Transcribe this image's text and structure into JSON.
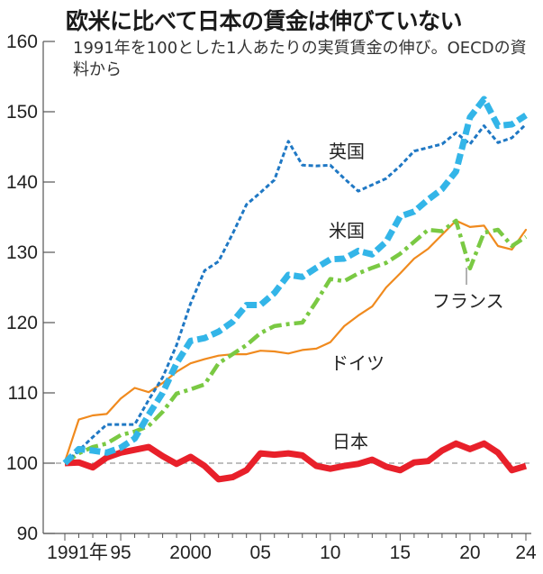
{
  "chart_data": {
    "type": "line",
    "title": "欧米に比べて日本の賃金は伸びていない",
    "subtitle": "1991年を100とした1人あたりの実質賃金の伸び。OECDの資料から",
    "xlabel": "",
    "ylabel": "",
    "xlim": [
      1991,
      2024
    ],
    "ylim": [
      90,
      160
    ],
    "yticks": [
      90,
      100,
      110,
      120,
      130,
      140,
      150,
      160
    ],
    "xtick_labels": [
      {
        "year": 1991,
        "label": "1991年"
      },
      {
        "year": 1995,
        "label": "95"
      },
      {
        "year": 2000,
        "label": "2000"
      },
      {
        "year": 2005,
        "label": "05"
      },
      {
        "year": 2010,
        "label": "10"
      },
      {
        "year": 2015,
        "label": "15"
      },
      {
        "year": 2020,
        "label": "20"
      },
      {
        "year": 2024,
        "label": "24"
      }
    ],
    "reference_line": 100,
    "x": [
      1991,
      1992,
      1993,
      1994,
      1995,
      1996,
      1997,
      1998,
      1999,
      2000,
      2001,
      2002,
      2003,
      2004,
      2005,
      2006,
      2007,
      2008,
      2009,
      2010,
      2011,
      2012,
      2013,
      2014,
      2015,
      2016,
      2017,
      2018,
      2019,
      2020,
      2021,
      2022,
      2023,
      2024
    ],
    "series": [
      {
        "name": "英国",
        "color": "#1f78c4",
        "style": "dotted",
        "values": [
          100,
          101.8,
          103.7,
          105.5,
          105.5,
          105.5,
          109,
          112.2,
          116.8,
          122.7,
          127.4,
          128.7,
          132.6,
          136.8,
          138.5,
          140.3,
          145.8,
          142.4,
          142.3,
          142.4,
          140.5,
          138.7,
          139.6,
          140.5,
          142.3,
          144.4,
          144.9,
          145.4,
          147.0,
          145.4,
          148.0,
          145.6,
          146.3,
          148.2
        ]
      },
      {
        "name": "米国",
        "color": "#33b5e8",
        "style": "thick-dashed",
        "values": [
          100,
          102,
          101.8,
          101.5,
          102.2,
          103.5,
          106.9,
          110,
          114.2,
          117.4,
          117.8,
          118.7,
          120.1,
          122.5,
          122.5,
          124.2,
          126.8,
          126.5,
          127.8,
          129,
          129.1,
          130.2,
          129.7,
          131.5,
          135.1,
          135.8,
          137.5,
          139,
          141.5,
          149.2,
          151.8,
          148,
          148.2,
          149.5
        ]
      },
      {
        "name": "フランス",
        "color": "#7ac943",
        "style": "dash-dot",
        "values": [
          100,
          101.4,
          102.3,
          102.8,
          104,
          104.5,
          105.3,
          107.3,
          109.9,
          110.5,
          111.2,
          114.2,
          115.5,
          116.8,
          118.5,
          119.5,
          119.8,
          120,
          123,
          126.2,
          125.9,
          127,
          127.8,
          128.5,
          129.8,
          131.5,
          133.2,
          133,
          134.5,
          127.7,
          132.8,
          133.2,
          130.9,
          132.2
        ]
      },
      {
        "name": "ドイツ",
        "color": "#f08a1e",
        "style": "solid",
        "values": [
          100.2,
          106.2,
          106.8,
          107,
          109.2,
          110.7,
          110.1,
          111.4,
          113,
          114.2,
          114.8,
          115.3,
          115.5,
          115.5,
          116,
          115.9,
          115.6,
          116.1,
          116.3,
          117.2,
          119.5,
          121,
          122.3,
          125,
          127,
          129.1,
          130.5,
          132.5,
          134.5,
          133.6,
          133.8,
          130.9,
          130.4,
          133.2
        ]
      },
      {
        "name": "日本",
        "color": "#e8202a",
        "style": "thick-solid",
        "values": [
          100,
          100.1,
          99.4,
          100.8,
          101.5,
          101.9,
          102.3,
          101,
          99.9,
          100.9,
          99.6,
          97.7,
          98,
          99,
          101.4,
          101.2,
          101.4,
          101.1,
          99.6,
          99.2,
          99.6,
          99.9,
          100.5,
          99.5,
          99,
          100.1,
          100.3,
          101.8,
          102.8,
          102,
          102.8,
          101.5,
          99,
          99.6
        ]
      }
    ],
    "annotations": [
      {
        "text": "英国",
        "series": "英国"
      },
      {
        "text": "米国",
        "series": "米国"
      },
      {
        "text": "フランス",
        "series": "フランス",
        "leader_line": true
      },
      {
        "text": "ドイツ",
        "series": "ドイツ"
      },
      {
        "text": "日本",
        "series": "日本"
      }
    ],
    "grid": false,
    "legend": "none (inline labels)"
  }
}
